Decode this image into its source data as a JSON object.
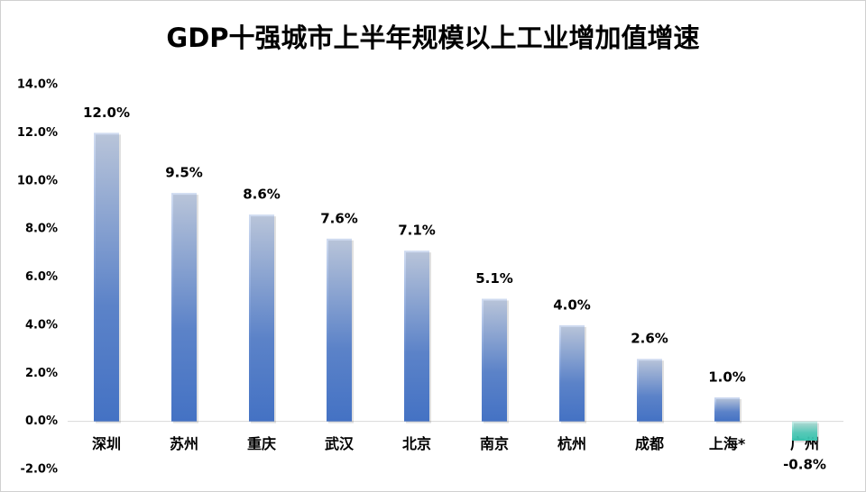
{
  "chart_data": {
    "type": "bar",
    "title": "GDP十强城市上半年规模以上工业增加值增速",
    "categories": [
      "深圳",
      "苏州",
      "重庆",
      "武汉",
      "北京",
      "南京",
      "杭州",
      "成都",
      "上海*",
      "广州"
    ],
    "values": [
      12.0,
      9.5,
      8.6,
      7.6,
      7.1,
      5.1,
      4.0,
      2.6,
      1.0,
      -0.8
    ],
    "value_labels": [
      "12.0%",
      "9.5%",
      "8.6%",
      "7.6%",
      "7.1%",
      "5.1%",
      "4.0%",
      "2.6%",
      "1.0%",
      "-0.8%"
    ],
    "colors": [
      "#4472c4",
      "#4472c4",
      "#4472c4",
      "#4472c4",
      "#4472c4",
      "#4472c4",
      "#4472c4",
      "#4472c4",
      "#4472c4",
      "#3cc4b0"
    ],
    "ylim": [
      -2,
      14
    ],
    "yticks": [
      {
        "value": -2,
        "label": "-2.0%"
      },
      {
        "value": 0,
        "label": "0.0%"
      },
      {
        "value": 2,
        "label": "2.0%"
      },
      {
        "value": 4,
        "label": "4.0%"
      },
      {
        "value": 6,
        "label": "6.0%"
      },
      {
        "value": 8,
        "label": "8.0%"
      },
      {
        "value": 10,
        "label": "10.0%"
      },
      {
        "value": 12,
        "label": "12.0%"
      },
      {
        "value": 14,
        "label": "14.0%"
      }
    ],
    "grid": false
  }
}
